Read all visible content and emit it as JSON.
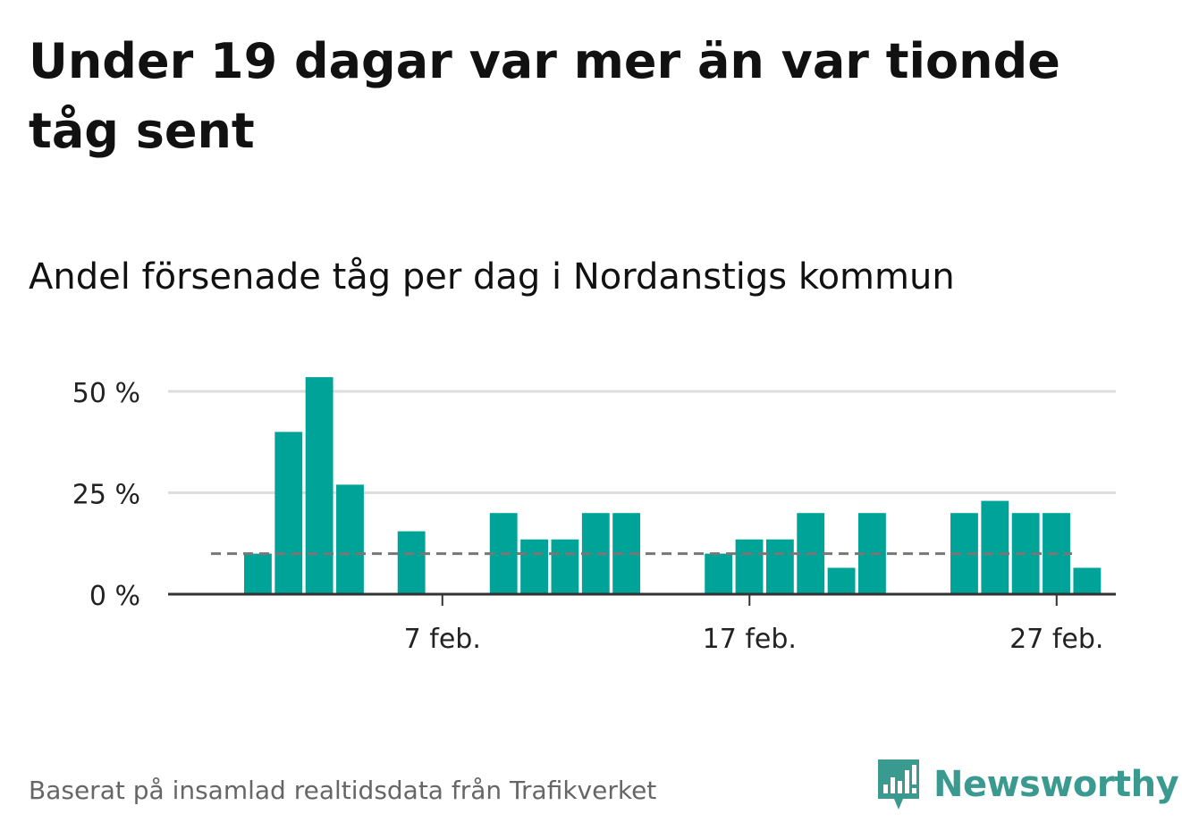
{
  "title": "Under 19 dagar var mer än var tionde tåg sent",
  "subtitle": "Andel försenade tåg per dag i Nordanstigs kommun",
  "footer": "Baserat på insamlad realtidsdata från Trafikverket",
  "brand": {
    "name": "Newsworthy",
    "color": "#3a9a8f",
    "icon": "newsworthy-bars-icon"
  },
  "colors": {
    "bar": "#00a398",
    "grid": "#dddddd",
    "axis": "#333333",
    "reference": "#777777"
  },
  "chart_data": {
    "type": "bar",
    "x": [
      "2022-02-01",
      "2022-02-02",
      "2022-02-03",
      "2022-02-04",
      "2022-02-05",
      "2022-02-06",
      "2022-02-07",
      "2022-02-08",
      "2022-02-09",
      "2022-02-10",
      "2022-02-11",
      "2022-02-12",
      "2022-02-13",
      "2022-02-14",
      "2022-02-15",
      "2022-02-16",
      "2022-02-17",
      "2022-02-18",
      "2022-02-19",
      "2022-02-20",
      "2022-02-21",
      "2022-02-22",
      "2022-02-23",
      "2022-02-24",
      "2022-02-25",
      "2022-02-26",
      "2022-02-27",
      "2022-02-28"
    ],
    "values": [
      10,
      40,
      53.5,
      27,
      0,
      15.5,
      0,
      0,
      20,
      13.5,
      13.5,
      20,
      20,
      0,
      0,
      10,
      13.5,
      13.5,
      20,
      6.5,
      20,
      0,
      0,
      20,
      23,
      20,
      20,
      6.5
    ],
    "reference_line": 10,
    "ylim": [
      0,
      50
    ],
    "yticks": [
      0,
      25,
      50
    ],
    "ytick_labels": [
      "0 %",
      "25 %",
      "50 %"
    ],
    "xticks": [
      "2022-02-07",
      "2022-02-17",
      "2022-02-27"
    ],
    "xtick_labels": [
      "7 feb.",
      "17 feb.",
      "27 feb."
    ],
    "grid": true
  }
}
